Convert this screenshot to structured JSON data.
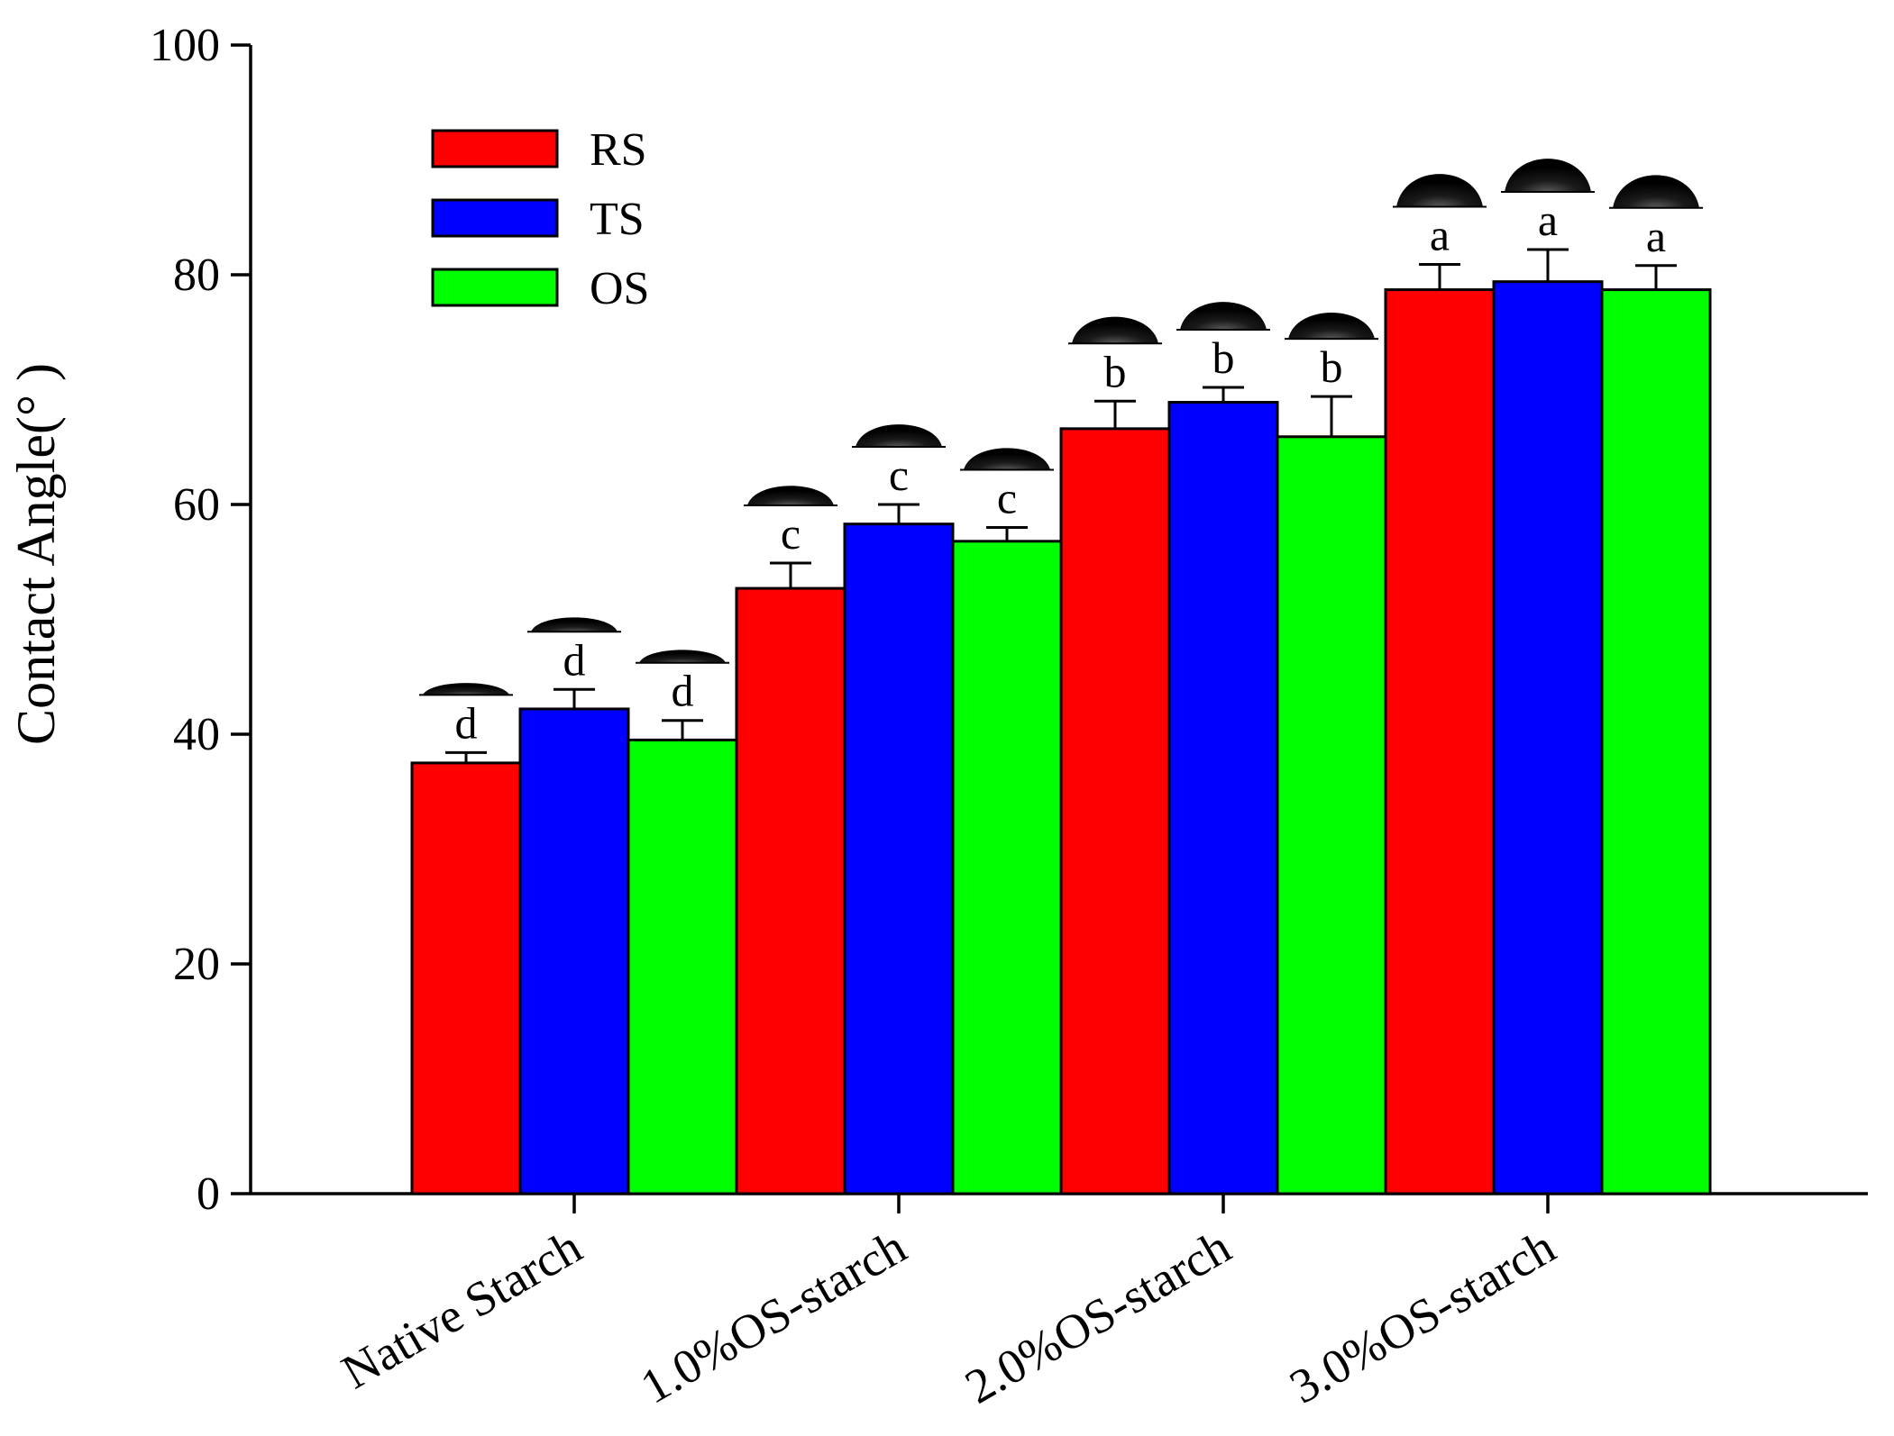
{
  "chart_data": {
    "type": "bar",
    "title": "",
    "xlabel": "",
    "ylabel": "Contact Angle(° )",
    "ylim": [
      0,
      100
    ],
    "yticks": [
      "0",
      "20",
      "40",
      "60",
      "80",
      "100"
    ],
    "grid": false,
    "legend_position": "top-left",
    "categories": [
      "Native Starch",
      "1.0%OS-starch",
      "2.0%OS-starch",
      "3.0%OS-starch"
    ],
    "series": [
      {
        "name": "RS",
        "color": "#ff0000",
        "values": [
          37.5,
          52.7,
          66.6,
          78.7
        ],
        "errors": [
          0.9,
          2.2,
          2.4,
          2.2
        ],
        "letters": [
          "d",
          "c",
          "b",
          "a"
        ]
      },
      {
        "name": "TS",
        "color": "#0000ff",
        "values": [
          42.2,
          58.3,
          68.9,
          79.4
        ],
        "errors": [
          1.7,
          1.7,
          1.3,
          2.8
        ],
        "letters": [
          "d",
          "c",
          "b",
          "a"
        ]
      },
      {
        "name": "OS",
        "color": "#00ff00",
        "values": [
          39.5,
          56.8,
          65.9,
          78.7
        ],
        "errors": [
          1.7,
          1.2,
          3.5,
          2.1
        ],
        "letters": [
          "d",
          "c",
          "b",
          "a"
        ]
      }
    ],
    "annotations": "water droplet image above each bar"
  }
}
